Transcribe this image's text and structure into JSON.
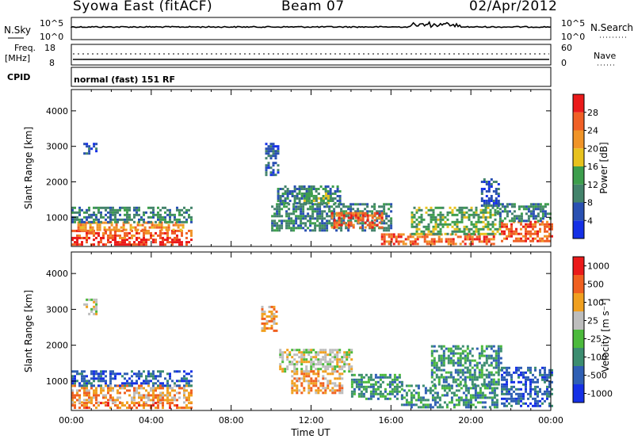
{
  "header": {
    "station": "Syowa East (fitACF)",
    "beam": "Beam 07",
    "date": "02/Apr/2012"
  },
  "chart_data": [
    {
      "type": "line",
      "panel": "sky-search-noise",
      "left_label": "N.Sky",
      "right_label": "N.Search",
      "y_ticks": [
        "10^5",
        "10^0"
      ],
      "yscale": "log",
      "ylim": [
        1,
        100000
      ],
      "x_range_hours": [
        0,
        24
      ]
    },
    {
      "type": "line",
      "panel": "frequency-nave",
      "left_label": "Freq.",
      "left_unit": "[MHz]",
      "left_ticks": [
        18,
        8
      ],
      "right_label": "Nave",
      "right_ticks": [
        60,
        0
      ],
      "freq_mhz_approx": 11.5,
      "nave_approx": 30
    },
    {
      "type": "table",
      "panel": "cpid",
      "label": "CPID",
      "value": "normal (fast) 151 RF"
    },
    {
      "type": "heatmap",
      "panel": "power",
      "ylabel": "Slant Range [km]",
      "y_ticks": [
        1000,
        2000,
        3000,
        4000
      ],
      "ylim": [
        180,
        4600
      ],
      "colorbar": {
        "label": "Power [dB]",
        "ticks": [
          "4",
          "8",
          "12",
          "16",
          "20",
          "24",
          "28"
        ],
        "colors": [
          "#1530e6",
          "#2950b2",
          "#43836b",
          "#3d9e4d",
          "#e8c21e",
          "#f09428",
          "#f06026",
          "#ea1a1a"
        ]
      },
      "regions": [
        {
          "t0": 0.0,
          "t1": 6.0,
          "r0": 250,
          "r1": 400,
          "level": 7
        },
        {
          "t0": 0.0,
          "t1": 6.0,
          "r0": 400,
          "r1": 650,
          "level": 6
        },
        {
          "t0": 0.3,
          "t1": 5.6,
          "r0": 650,
          "r1": 880,
          "level": 5
        },
        {
          "t0": 0.0,
          "t1": 6.0,
          "r0": 880,
          "r1": 1300,
          "level": 2
        },
        {
          "t0": 0.6,
          "t1": 1.2,
          "r0": 2800,
          "r1": 3100,
          "level": 1
        },
        {
          "t0": 9.7,
          "t1": 10.4,
          "r0": 2200,
          "r1": 3100,
          "level": 1
        },
        {
          "t0": 10.3,
          "t1": 13.5,
          "r0": 1400,
          "r1": 1900,
          "level": 2
        },
        {
          "t0": 11.5,
          "t1": 13.0,
          "r0": 1400,
          "r1": 1700,
          "level": 3
        },
        {
          "t0": 10.0,
          "t1": 16.0,
          "r0": 600,
          "r1": 1400,
          "level": 2
        },
        {
          "t0": 13.0,
          "t1": 15.5,
          "r0": 700,
          "r1": 1150,
          "level": 6
        },
        {
          "t0": 15.5,
          "t1": 21.2,
          "r0": 250,
          "r1": 550,
          "level": 6
        },
        {
          "t0": 17.0,
          "t1": 21.5,
          "r0": 550,
          "r1": 1300,
          "level": 3
        },
        {
          "t0": 21.5,
          "t1": 24.0,
          "r0": 300,
          "r1": 900,
          "level": 6
        },
        {
          "t0": 21.3,
          "t1": 24.0,
          "r0": 900,
          "r1": 1400,
          "level": 2
        },
        {
          "t0": 20.5,
          "t1": 21.4,
          "r0": 1300,
          "r1": 2100,
          "level": 1
        }
      ]
    },
    {
      "type": "heatmap",
      "panel": "velocity",
      "ylabel": "Slant Range [km]",
      "y_ticks": [
        1000,
        2000,
        3000,
        4000
      ],
      "ylim": [
        180,
        4600
      ],
      "xlabel": "Time UT",
      "x_ticks": [
        "00:00",
        "04:00",
        "08:00",
        "12:00",
        "16:00",
        "20:00",
        "00:00"
      ],
      "colorbar": {
        "label": "Velocity [m s⁻¹]",
        "ticks": [
          "1000",
          "500",
          "100",
          "25",
          "-25",
          "-100",
          "-500",
          "-1000"
        ],
        "colors": [
          "#1530e6",
          "#2f5fb4",
          "#3c8d70",
          "#4cba3c",
          "#bdbdbd",
          "#f0a020",
          "#f06020",
          "#ea1a1a"
        ]
      },
      "regions": [
        {
          "t0": 0.0,
          "t1": 6.0,
          "r0": 250,
          "r1": 420,
          "level": 6
        },
        {
          "t0": 0.0,
          "t1": 6.0,
          "r0": 420,
          "r1": 900,
          "level": 5
        },
        {
          "t0": 0.0,
          "t1": 6.0,
          "r0": 900,
          "r1": 1300,
          "level": 1
        },
        {
          "t0": 0.6,
          "t1": 1.2,
          "r0": 2900,
          "r1": 3300,
          "level": 4
        },
        {
          "t0": 9.5,
          "t1": 10.3,
          "r0": 2400,
          "r1": 3100,
          "level": 5
        },
        {
          "t0": 10.4,
          "t1": 14.0,
          "r0": 1300,
          "r1": 1900,
          "level": 4
        },
        {
          "t0": 11.0,
          "t1": 13.5,
          "r0": 700,
          "r1": 1300,
          "level": 5
        },
        {
          "t0": 14.0,
          "t1": 16.5,
          "r0": 500,
          "r1": 1200,
          "level": 2
        },
        {
          "t0": 16.5,
          "t1": 21.3,
          "r0": 300,
          "r1": 900,
          "level": 2
        },
        {
          "t0": 18.0,
          "t1": 21.5,
          "r0": 900,
          "r1": 2000,
          "level": 2
        },
        {
          "t0": 21.5,
          "t1": 24.0,
          "r0": 300,
          "r1": 1400,
          "level": 1
        }
      ]
    }
  ]
}
